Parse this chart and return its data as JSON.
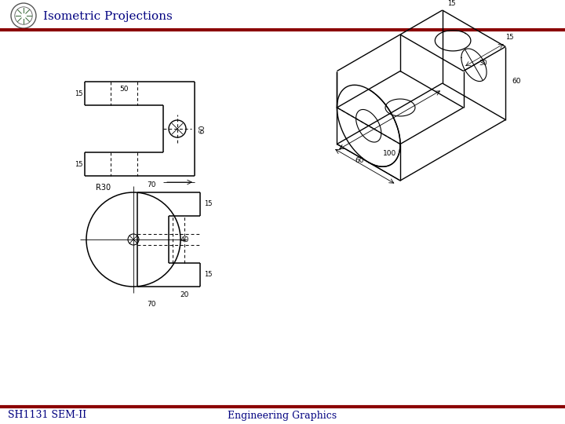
{
  "title": "Isometric Projections",
  "footer_left": "SH1131 SEM-II",
  "footer_right": "Engineering Graphics",
  "header_line_color": "#8B0000",
  "text_color": "#000080",
  "bg_color": "#ffffff"
}
